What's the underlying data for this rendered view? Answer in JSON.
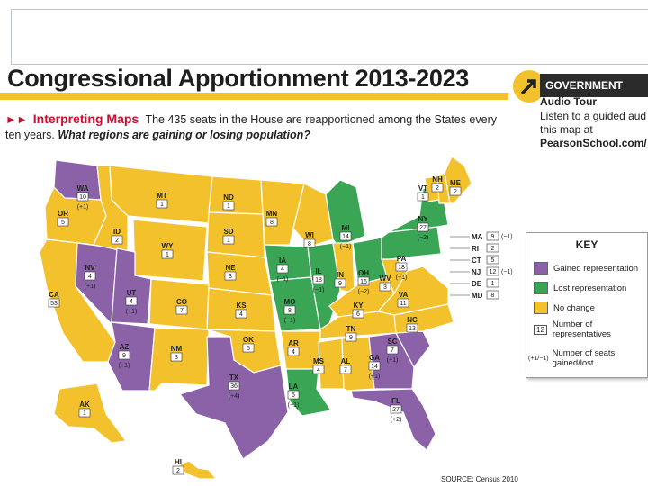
{
  "title": "Congressional Apportionment 2013-2023",
  "audio_tour": {
    "header": "GOVERNMENT",
    "subtitle": "Audio Tour",
    "text": "Listen to a guided aud this map at",
    "url": "PearsonSchool.com/"
  },
  "interpreting": {
    "heading": "Interpreting Maps",
    "text": "The 435 seats in the House are reapportioned among the States every ten years.",
    "question": "What regions are gaining or losing population?"
  },
  "colors": {
    "gained": "#8b62a8",
    "lost": "#3aa655",
    "nochange": "#f3c12c",
    "ocean": "#ffffff",
    "border": "#ffffff"
  },
  "states": [
    {
      "id": "WA",
      "seats": "10",
      "change": "(+1)",
      "status": "gained"
    },
    {
      "id": "OR",
      "seats": "5",
      "change": "",
      "status": "nochange"
    },
    {
      "id": "CA",
      "seats": "53",
      "change": "",
      "status": "nochange"
    },
    {
      "id": "NV",
      "seats": "4",
      "change": "(+1)",
      "status": "gained"
    },
    {
      "id": "ID",
      "seats": "2",
      "change": "",
      "status": "nochange"
    },
    {
      "id": "MT",
      "seats": "1",
      "change": "",
      "status": "nochange"
    },
    {
      "id": "WY",
      "seats": "1",
      "change": "",
      "status": "nochange"
    },
    {
      "id": "UT",
      "seats": "4",
      "change": "(+1)",
      "status": "gained"
    },
    {
      "id": "AZ",
      "seats": "9",
      "change": "(+1)",
      "status": "gained"
    },
    {
      "id": "CO",
      "seats": "7",
      "change": "",
      "status": "nochange"
    },
    {
      "id": "NM",
      "seats": "3",
      "change": "",
      "status": "nochange"
    },
    {
      "id": "ND",
      "seats": "1",
      "change": "",
      "status": "nochange"
    },
    {
      "id": "SD",
      "seats": "1",
      "change": "",
      "status": "nochange"
    },
    {
      "id": "NE",
      "seats": "3",
      "change": "",
      "status": "nochange"
    },
    {
      "id": "KS",
      "seats": "4",
      "change": "",
      "status": "nochange"
    },
    {
      "id": "OK",
      "seats": "5",
      "change": "",
      "status": "nochange"
    },
    {
      "id": "TX",
      "seats": "36",
      "change": "(+4)",
      "status": "gained"
    },
    {
      "id": "MN",
      "seats": "8",
      "change": "",
      "status": "nochange"
    },
    {
      "id": "IA",
      "seats": "4",
      "change": "(−1)",
      "status": "lost"
    },
    {
      "id": "MO",
      "seats": "8",
      "change": "(−1)",
      "status": "lost"
    },
    {
      "id": "AR",
      "seats": "4",
      "change": "",
      "status": "nochange"
    },
    {
      "id": "LA",
      "seats": "6",
      "change": "(−1)",
      "status": "lost"
    },
    {
      "id": "WI",
      "seats": "8",
      "change": "",
      "status": "nochange"
    },
    {
      "id": "IL",
      "seats": "18",
      "change": "(−1)",
      "status": "lost"
    },
    {
      "id": "MI",
      "seats": "14",
      "change": "(−1)",
      "status": "lost"
    },
    {
      "id": "IN",
      "seats": "9",
      "change": "",
      "status": "nochange"
    },
    {
      "id": "OH",
      "seats": "16",
      "change": "(−2)",
      "status": "lost"
    },
    {
      "id": "KY",
      "seats": "6",
      "change": "",
      "status": "nochange"
    },
    {
      "id": "TN",
      "seats": "9",
      "change": "",
      "status": "nochange"
    },
    {
      "id": "MS",
      "seats": "4",
      "change": "",
      "status": "nochange"
    },
    {
      "id": "AL",
      "seats": "7",
      "change": "",
      "status": "nochange"
    },
    {
      "id": "GA",
      "seats": "14",
      "change": "(+1)",
      "status": "gained"
    },
    {
      "id": "FL",
      "seats": "27",
      "change": "(+2)",
      "status": "gained"
    },
    {
      "id": "SC",
      "seats": "7",
      "change": "(+1)",
      "status": "gained"
    },
    {
      "id": "NC",
      "seats": "13",
      "change": "",
      "status": "nochange"
    },
    {
      "id": "VA",
      "seats": "11",
      "change": "",
      "status": "nochange"
    },
    {
      "id": "WV",
      "seats": "3",
      "change": "",
      "status": "nochange"
    },
    {
      "id": "PA",
      "seats": "18",
      "change": "(−1)",
      "status": "lost"
    },
    {
      "id": "NY",
      "seats": "27",
      "change": "(−2)",
      "status": "lost"
    },
    {
      "id": "VT",
      "seats": "1",
      "change": "",
      "status": "nochange"
    },
    {
      "id": "NH",
      "seats": "2",
      "change": "",
      "status": "nochange"
    },
    {
      "id": "ME",
      "seats": "2",
      "change": "",
      "status": "nochange"
    },
    {
      "id": "AK",
      "seats": "1",
      "change": "",
      "status": "nochange"
    },
    {
      "id": "HI",
      "seats": "2",
      "change": "",
      "status": "nochange"
    }
  ],
  "northeast_callouts": [
    {
      "id": "MA",
      "seats": "9",
      "change": "(−1)",
      "status": "lost"
    },
    {
      "id": "RI",
      "seats": "2",
      "change": "",
      "status": "nochange"
    },
    {
      "id": "CT",
      "seats": "5",
      "change": "",
      "status": "nochange"
    },
    {
      "id": "NJ",
      "seats": "12",
      "change": "(−1)",
      "status": "lost"
    },
    {
      "id": "DE",
      "seats": "1",
      "change": "",
      "status": "nochange"
    },
    {
      "id": "MD",
      "seats": "8",
      "change": "",
      "status": "nochange"
    }
  ],
  "key": {
    "title": "KEY",
    "gained": "Gained representation",
    "lost": "Lost representation",
    "nochange": "No change",
    "number_sample": "12",
    "number_label": "Number of representatives",
    "change_sample": "(+1/−1)",
    "change_label": "Number of seats gained/lost"
  },
  "source": "SOURCE: Census 2010"
}
